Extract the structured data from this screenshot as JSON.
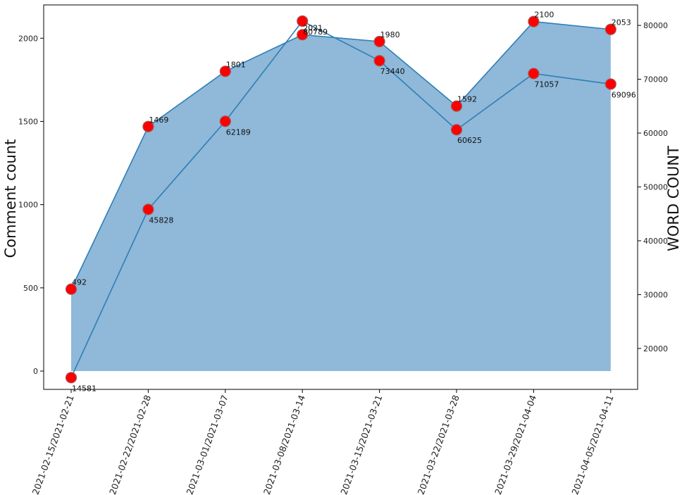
{
  "chart_data": {
    "type": "area",
    "categories": [
      "2021-02-15/2021-02-21",
      "2021-02-22/2021-02-28",
      "2021-03-01/2021-03-07",
      "2021-03-08/2021-03-14",
      "2021-03-15/2021-03-21",
      "2021-03-22/2021-03-28",
      "2021-03-29/2021-04-04",
      "2021-04-05/2021-04-11"
    ],
    "ylabel": "Comment count",
    "y2label": "WORD COUNT",
    "xlabel": "",
    "title": "",
    "ylim": [
      -110,
      2200
    ],
    "y2lim": [
      12400,
      83800
    ],
    "yticks": [
      0,
      500,
      1000,
      1500,
      2000
    ],
    "y2ticks": [
      20000,
      30000,
      40000,
      50000,
      60000,
      70000,
      80000
    ],
    "series": [
      {
        "axis": "left",
        "style": "filled area",
        "values": [
          492,
          1469,
          1801,
          2021,
          1980,
          1592,
          2100,
          2053
        ]
      },
      {
        "axis": "right",
        "style": "line",
        "values": [
          14581,
          45828,
          62189,
          80789,
          73440,
          60625,
          71057,
          69096
        ]
      }
    ],
    "colors": {
      "fill": "#8fb8d9",
      "line": "#2f7fb5",
      "marker": "#ff0000",
      "marker_edge": "#a05a5a"
    },
    "grid": false
  }
}
